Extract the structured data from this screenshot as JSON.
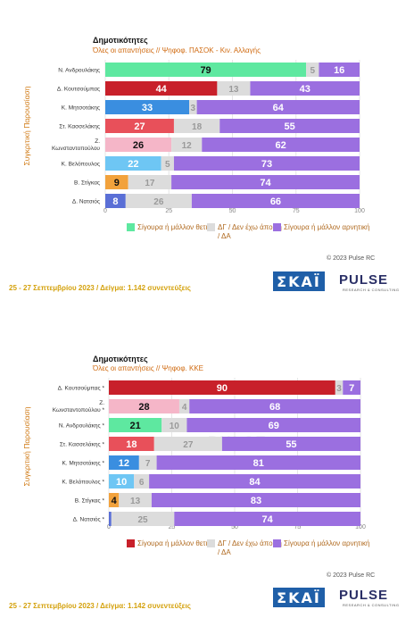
{
  "footer_text": "25 - 27 Σεπτεμβρίου 2023 / Δείγμα: 1.142 συνεντεύξεις",
  "copyright": "© 2023 Pulse RC",
  "brand": {
    "skai": "ΣΚΑΪ",
    "pulse": "PULSE",
    "pulse_sub": "RESEARCH & CONSULTING",
    "watermark": "PULSE"
  },
  "colors": {
    "neutral": "#dcdcdc",
    "negative": "#9b6fe0",
    "text_light": "#ffffff",
    "text_dark": "#111111"
  },
  "chart_data": [
    {
      "type": "bar",
      "stacked": "horizontal",
      "title": "Δημοτικότητες",
      "subtitle": "Όλες οι απαντήσεις // Ψηφοφ. ΠΑΣΟΚ - Κιν. Αλλαγής",
      "ylabel": "Συγκριτική Παρουσίαση",
      "xlim": [
        0,
        100
      ],
      "xticks": [
        0,
        25,
        50,
        75,
        100
      ],
      "categories": [
        "Ν. Ανδρουλάκης",
        "Δ. Κουτσούμπας",
        "Κ. Μητσοτάκης",
        "Στ. Κασσελάκης",
        "Ζ. Κωνσταντοπούλου",
        "Κ. Βελόπουλος",
        "Β. Στίγκας",
        "Δ. Νατσιός"
      ],
      "positive_colors": [
        "#5ee8a0",
        "#c8202a",
        "#3a8ee0",
        "#e8505a",
        "#f5b6c8",
        "#6ec6f4",
        "#f2a23c",
        "#5a6fd6"
      ],
      "series": [
        {
          "name": "Σίγουρα ή μάλλον θετική",
          "values": [
            79,
            44,
            33,
            27,
            26,
            22,
            9,
            8
          ]
        },
        {
          "name": "ΔΓ / Δεν έχω άποψη / ΔΑ",
          "values": [
            5,
            13,
            3,
            18,
            12,
            5,
            17,
            26
          ]
        },
        {
          "name": "Σίγουρα ή μάλλον αρνητική",
          "values": [
            16,
            43,
            64,
            55,
            62,
            73,
            74,
            66
          ]
        }
      ],
      "legend_position": "bottom",
      "legend_swatch": "#5ee8a0"
    },
    {
      "type": "bar",
      "stacked": "horizontal",
      "title": "Δημοτικότητες",
      "subtitle": "Όλες οι απαντήσεις // Ψηφοφ. ΚΚΕ",
      "ylabel": "Συγκριτική Παρουσίαση",
      "xlim": [
        0,
        100
      ],
      "xticks": [
        0,
        25,
        50,
        75,
        100
      ],
      "categories": [
        "Δ. Κουτσούμπας *",
        "Ζ. Κωνσταντοπούλου *",
        "Ν. Ανδρουλάκης *",
        "Στ. Κασσελάκης *",
        "Κ. Μητσοτάκης *",
        "Κ. Βελόπουλος *",
        "Β. Στίγκας *",
        "Δ. Νατσιός *"
      ],
      "positive_colors": [
        "#c8202a",
        "#f5b6c8",
        "#5ee8a0",
        "#e8505a",
        "#3a8ee0",
        "#6ec6f4",
        "#f2a23c",
        "#5a6fd6"
      ],
      "series": [
        {
          "name": "Σίγουρα ή μάλλον θετική",
          "values": [
            90,
            28,
            21,
            18,
            12,
            10,
            4,
            1
          ]
        },
        {
          "name": "ΔΓ / Δεν έχω άποψη / ΔΑ",
          "values": [
            3,
            4,
            10,
            27,
            7,
            6,
            13,
            25
          ]
        },
        {
          "name": "Σίγουρα ή μάλλον αρνητική",
          "values": [
            7,
            68,
            69,
            55,
            81,
            84,
            83,
            74
          ]
        }
      ],
      "legend_position": "bottom",
      "legend_swatch": "#c8202a"
    }
  ]
}
